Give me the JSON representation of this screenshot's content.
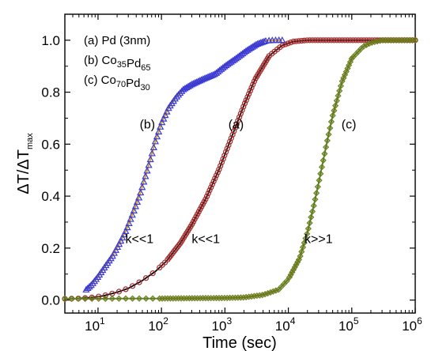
{
  "chart_data": {
    "type": "scatter",
    "xscale": "log",
    "xlim": [
      3,
      1000000
    ],
    "ylim": [
      -0.05,
      1.1
    ],
    "xlabel": "Time (sec)",
    "ylabel": {
      "main": "ΔT/ΔT",
      "sub": "max"
    },
    "x_ticks": [
      {
        "value": 10,
        "base": "10",
        "exp": "1"
      },
      {
        "value": 100,
        "base": "10",
        "exp": "2"
      },
      {
        "value": 1000,
        "base": "10",
        "exp": "3"
      },
      {
        "value": 10000,
        "base": "10",
        "exp": "4"
      },
      {
        "value": 100000,
        "base": "10",
        "exp": "5"
      },
      {
        "value": 1000000,
        "base": "10",
        "exp": "6"
      }
    ],
    "y_ticks": [
      "0.0",
      "0.2",
      "0.4",
      "0.6",
      "0.8",
      "1.0"
    ],
    "legend": [
      {
        "tag": "(a)",
        "parts": [
          [
            "Pd (3nm)",
            ""
          ]
        ]
      },
      {
        "tag": "(b)",
        "parts": [
          [
            "Co",
            "35"
          ],
          [
            "Pd",
            "65"
          ]
        ]
      },
      {
        "tag": "(c)",
        "parts": [
          [
            "Co",
            "70"
          ],
          [
            "Pd",
            "30"
          ]
        ]
      }
    ],
    "annotations": [
      {
        "text": "(b)",
        "x": 60,
        "y": 0.66
      },
      {
        "text": "(a)",
        "x": 1500,
        "y": 0.66
      },
      {
        "text": "(c)",
        "x": 90000,
        "y": 0.66
      },
      {
        "text": "k<<1",
        "x": 45,
        "y": 0.22
      },
      {
        "text": "k<<1",
        "x": 500,
        "y": 0.22
      },
      {
        "text": "k>>1",
        "x": 30000,
        "y": 0.22
      }
    ],
    "series": [
      {
        "marker": "circle",
        "color": "#a52a2a",
        "fit_color": "#000000",
        "x": [
          3,
          5,
          8,
          12,
          20,
          30,
          50,
          80,
          120,
          200,
          300,
          500,
          800,
          1200,
          2000,
          3000,
          5000,
          8000,
          12000,
          20000,
          30000,
          50000,
          100000,
          300000,
          1000000
        ],
        "y": [
          0.005,
          0.006,
          0.01,
          0.016,
          0.03,
          0.045,
          0.075,
          0.11,
          0.15,
          0.22,
          0.29,
          0.39,
          0.5,
          0.61,
          0.75,
          0.85,
          0.94,
          0.98,
          0.995,
          1.0,
          1.0,
          1.0,
          1.0,
          1.0,
          1.0
        ]
      },
      {
        "marker": "triangle",
        "color": "#3a3ad6",
        "fit_color": "#e0a000",
        "x": [
          6.5,
          8,
          10,
          13,
          17,
          22,
          28,
          35,
          45,
          55,
          65,
          80,
          100,
          130,
          170,
          220,
          300,
          450,
          700,
          1000,
          1500,
          2200,
          3200,
          4500,
          6000,
          8000
        ],
        "y": [
          0.04,
          0.06,
          0.09,
          0.13,
          0.17,
          0.22,
          0.27,
          0.33,
          0.4,
          0.47,
          0.53,
          0.61,
          0.68,
          0.74,
          0.78,
          0.81,
          0.83,
          0.85,
          0.87,
          0.9,
          0.93,
          0.96,
          0.985,
          0.998,
          1.0,
          1.0
        ]
      },
      {
        "marker": "diamond",
        "color": "#6e7a1c",
        "fit_color": "#2e8b1e",
        "x": [
          3,
          10,
          30,
          100,
          300,
          1000,
          2000,
          4000,
          7000,
          10000,
          15000,
          20000,
          25000,
          30000,
          40000,
          50000,
          70000,
          100000,
          150000,
          200000,
          300000,
          500000,
          1000000
        ],
        "y": [
          0.005,
          0.005,
          0.006,
          0.006,
          0.007,
          0.008,
          0.01,
          0.02,
          0.04,
          0.08,
          0.16,
          0.26,
          0.36,
          0.45,
          0.6,
          0.71,
          0.84,
          0.93,
          0.975,
          0.99,
          1.0,
          1.0,
          1.0
        ]
      }
    ]
  }
}
